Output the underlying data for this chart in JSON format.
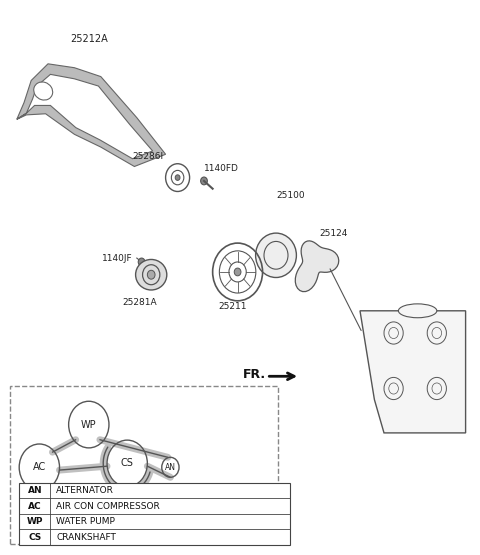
{
  "bg_color": "#ffffff",
  "line_color": "#555555",
  "legend_entries": [
    [
      "AN",
      "ALTERNATOR"
    ],
    [
      "AC",
      "AIR CON COMPRESSOR"
    ],
    [
      "WP",
      "WATER PUMP"
    ],
    [
      "CS",
      "CRANKSHAFT"
    ]
  ]
}
